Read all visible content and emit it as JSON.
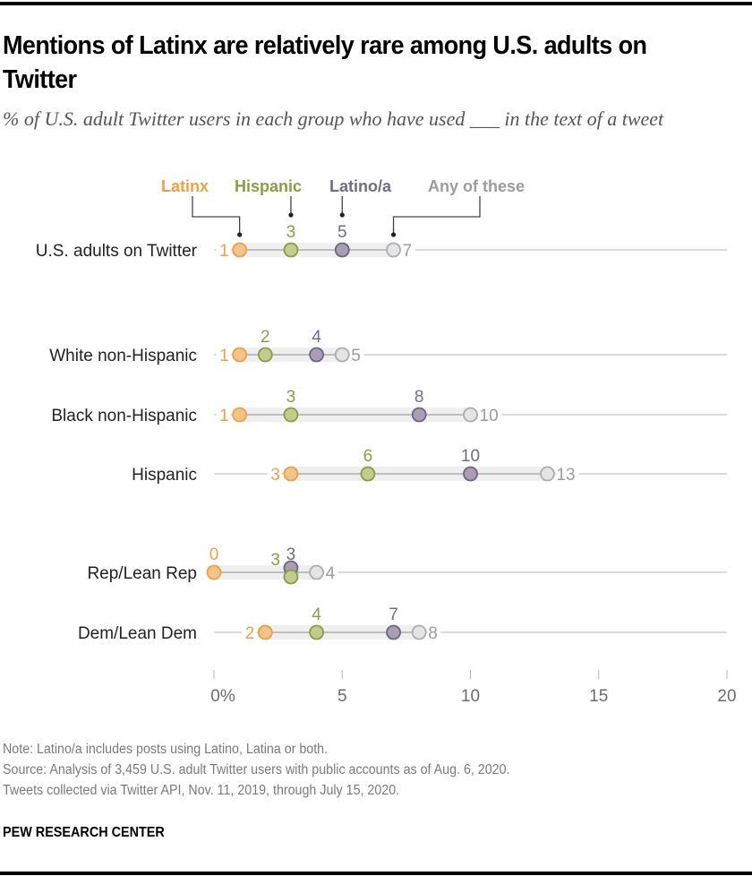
{
  "header": {
    "title": "Mentions of Latinx are relatively rare among U.S. adults on Twitter",
    "subtitle": "% of U.S. adult Twitter users in each group who have used ___ in the text of a tweet"
  },
  "footer": {
    "note": "Note: Latino/a includes posts using Latino, Latina or both.",
    "source": "Source: Analysis of 3,459 U.S. adult Twitter users with public accounts as of Aug. 6, 2020.",
    "source2": "Tweets collected via Twitter API, Nov. 11, 2019, through July 15, 2020.",
    "brand": "PEW RESEARCH CENTER"
  },
  "colors": {
    "latinx": {
      "stroke": "#E9A046",
      "fill": "#F4C38A",
      "text": "#EDA04A"
    },
    "hispanic": {
      "stroke": "#8C9C45",
      "fill": "#C3CC8C",
      "text": "#8C9C45"
    },
    "latino": {
      "stroke": "#6F6583",
      "fill": "#A99EB4",
      "text": "#736A86"
    },
    "any": {
      "stroke": "#ADADAD",
      "fill": "#E4E4E6",
      "text": "#9C9C9C"
    }
  },
  "chart_data": {
    "type": "dot",
    "title": "Mentions of Latinx are relatively rare among U.S. adults on Twitter",
    "subtitle": "% of U.S. adult Twitter users in each group who have used ___ in the text of a tweet",
    "xlabel": "",
    "ylabel": "",
    "xlim": [
      0,
      20
    ],
    "x_ticks": [
      0,
      5,
      10,
      15,
      20
    ],
    "x_tick_labels": [
      "0%",
      "5",
      "10",
      "15",
      "20"
    ],
    "grid": false,
    "legend_position": "top",
    "series": [
      {
        "key": "latinx",
        "name": "Latinx"
      },
      {
        "key": "hispanic",
        "name": "Hispanic"
      },
      {
        "key": "latino",
        "name": "Latino/a"
      },
      {
        "key": "any",
        "name": "Any of these"
      }
    ],
    "categories": [
      "U.S. adults on Twitter",
      "White non-Hispanic",
      "Black non-Hispanic",
      "Hispanic",
      "Rep/Lean Rep",
      "Dem/Lean Dem"
    ],
    "rows": [
      {
        "label": "U.S. adults on Twitter",
        "latinx": 1,
        "hispanic": 3,
        "latino": 5,
        "any": 7
      },
      {
        "label": "White non-Hispanic",
        "latinx": 1,
        "hispanic": 2,
        "latino": 4,
        "any": 5
      },
      {
        "label": "Black non-Hispanic",
        "latinx": 1,
        "hispanic": 3,
        "latino": 8,
        "any": 10
      },
      {
        "label": "Hispanic",
        "latinx": 3,
        "hispanic": 6,
        "latino": 10,
        "any": 13
      },
      {
        "label": "Rep/Lean Rep",
        "latinx": 0,
        "hispanic": 3,
        "latino": 3,
        "any": 4
      },
      {
        "label": "Dem/Lean Dem",
        "latinx": 2,
        "hispanic": 4,
        "latino": 7,
        "any": 8
      }
    ]
  }
}
